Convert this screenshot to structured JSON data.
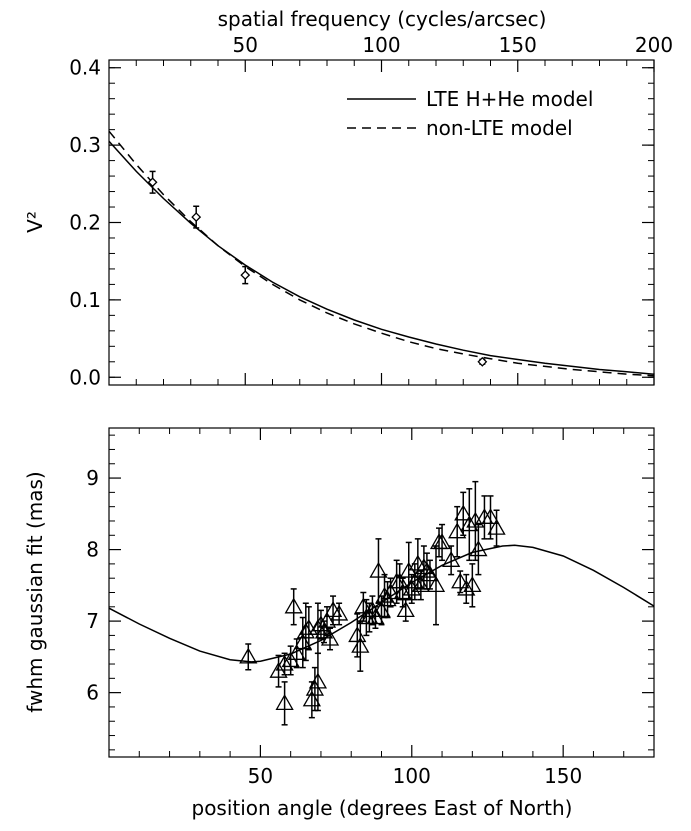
{
  "chart_data": [
    {
      "type": "line",
      "top_axis": {
        "label": "spatial frequency (cycles/arcsec)",
        "ticks": [
          {
            "value": 50,
            "label": "50"
          },
          {
            "value": 100,
            "label": "100"
          },
          {
            "value": 150,
            "label": "150"
          },
          {
            "value": 200,
            "label": "200"
          }
        ],
        "range": [
          0,
          200
        ]
      },
      "ylabel": "V²",
      "ylim": [
        -0.01,
        0.41
      ],
      "y_ticks": [
        {
          "value": 0.0,
          "label": "0.0"
        },
        {
          "value": 0.1,
          "label": "0.1"
        },
        {
          "value": 0.2,
          "label": "0.2"
        },
        {
          "value": 0.3,
          "label": "0.3"
        },
        {
          "value": 0.4,
          "label": "0.4"
        }
      ],
      "legend_position": "top-right",
      "series": [
        {
          "name": "LTE H+He model",
          "style": "solid",
          "x": [
            0,
            10,
            20,
            30,
            40,
            50,
            60,
            70,
            80,
            90,
            100,
            110,
            120,
            130,
            140,
            150,
            160,
            170,
            180,
            190,
            200
          ],
          "y": [
            0.305,
            0.266,
            0.231,
            0.199,
            0.17,
            0.145,
            0.123,
            0.104,
            0.088,
            0.074,
            0.062,
            0.052,
            0.043,
            0.035,
            0.028,
            0.023,
            0.018,
            0.014,
            0.01,
            0.007,
            0.004
          ]
        },
        {
          "name": "non-LTE model",
          "style": "dashed",
          "x": [
            0,
            10,
            20,
            30,
            40,
            50,
            60,
            70,
            80,
            90,
            100,
            110,
            120,
            130,
            140,
            150,
            160,
            170,
            180,
            190,
            200
          ],
          "y": [
            0.318,
            0.275,
            0.236,
            0.201,
            0.17,
            0.143,
            0.12,
            0.1,
            0.083,
            0.069,
            0.057,
            0.046,
            0.037,
            0.03,
            0.024,
            0.018,
            0.014,
            0.01,
            0.007,
            0.004,
            0.002
          ]
        },
        {
          "name": "",
          "style": "points",
          "marker": "diamond",
          "x": [
            16,
            32,
            50,
            137
          ],
          "y": [
            0.252,
            0.207,
            0.132,
            0.02
          ],
          "err": [
            0.014,
            0.014,
            0.011,
            0.003
          ]
        }
      ]
    },
    {
      "type": "scatter",
      "xlabel": "position angle (degrees East of North)",
      "ylabel": "fwhm gaussian fit (mas)",
      "xlim": [
        0,
        180
      ],
      "ylim": [
        5.1,
        9.7
      ],
      "x_ticks": [
        {
          "value": 50,
          "label": "50"
        },
        {
          "value": 100,
          "label": "100"
        },
        {
          "value": 150,
          "label": "150"
        }
      ],
      "y_ticks": [
        {
          "value": 6,
          "label": "6"
        },
        {
          "value": 7,
          "label": "7"
        },
        {
          "value": 8,
          "label": "8"
        },
        {
          "value": 9,
          "label": "9"
        }
      ],
      "model_curve": {
        "x": [
          0,
          10,
          20,
          30,
          40,
          47,
          50,
          60,
          70,
          80,
          90,
          100,
          110,
          120,
          130,
          134,
          140,
          150,
          160,
          170,
          180
        ],
        "y": [
          7.18,
          6.96,
          6.76,
          6.58,
          6.46,
          6.43,
          6.44,
          6.54,
          6.73,
          6.98,
          7.26,
          7.54,
          7.78,
          7.96,
          8.05,
          8.06,
          8.03,
          7.91,
          7.71,
          7.47,
          7.21
        ]
      },
      "points": {
        "marker": "triangle",
        "x": [
          46,
          56,
          58,
          58,
          60,
          61,
          62,
          64,
          65,
          66,
          67,
          68,
          69,
          69,
          70,
          71,
          72,
          73,
          74,
          76,
          82,
          83,
          84,
          85,
          86,
          87,
          88,
          89,
          90,
          91,
          92,
          93,
          95,
          96,
          97,
          98,
          99,
          100,
          101,
          102,
          103,
          104,
          105,
          106,
          108,
          109,
          110,
          113,
          115,
          116,
          117,
          118,
          119,
          120,
          121,
          122,
          124,
          126,
          128
        ],
        "y": [
          6.5,
          6.3,
          5.85,
          6.4,
          6.45,
          7.2,
          6.55,
          6.7,
          6.85,
          6.9,
          5.9,
          6.05,
          6.15,
          6.9,
          6.95,
          6.85,
          7.0,
          6.75,
          7.15,
          7.1,
          6.8,
          6.65,
          7.2,
          7.05,
          7.05,
          7.15,
          7.05,
          7.7,
          7.15,
          7.35,
          7.3,
          7.4,
          7.55,
          7.55,
          7.4,
          7.15,
          7.7,
          7.45,
          7.55,
          7.8,
          7.5,
          7.75,
          7.7,
          7.65,
          7.5,
          8.1,
          8.1,
          7.85,
          8.25,
          7.55,
          8.5,
          7.45,
          8.35,
          7.5,
          8.4,
          8.0,
          8.45,
          8.45,
          8.3
        ],
        "err": [
          0.18,
          0.22,
          0.3,
          0.15,
          0.2,
          0.25,
          0.2,
          0.35,
          0.4,
          0.3,
          0.25,
          0.3,
          0.4,
          0.35,
          0.2,
          0.15,
          0.2,
          0.15,
          0.2,
          0.15,
          0.3,
          0.35,
          0.2,
          0.25,
          0.2,
          0.2,
          0.15,
          0.45,
          0.2,
          0.3,
          0.25,
          0.2,
          0.3,
          0.25,
          0.2,
          0.15,
          0.4,
          0.2,
          0.25,
          0.35,
          0.2,
          0.3,
          0.25,
          0.2,
          0.55,
          0.2,
          0.25,
          0.2,
          0.35,
          0.15,
          0.3,
          0.2,
          0.5,
          0.3,
          0.55,
          0.35,
          0.3,
          0.3,
          0.25
        ]
      }
    }
  ]
}
